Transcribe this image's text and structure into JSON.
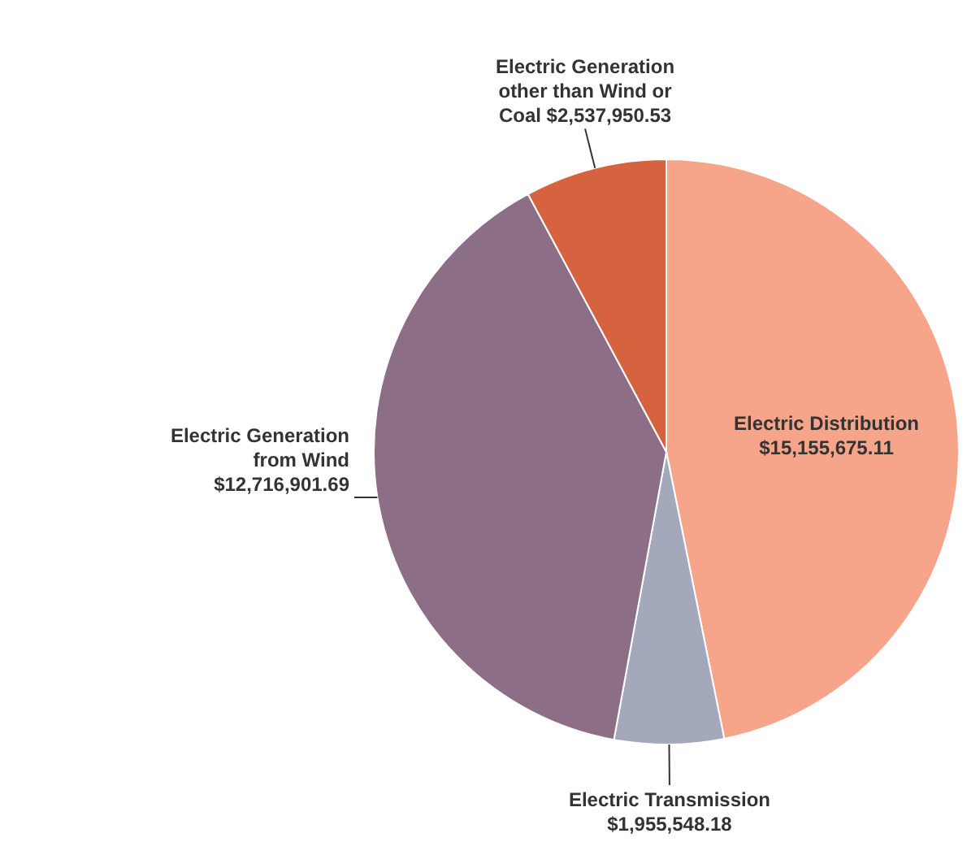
{
  "chart_data": {
    "type": "pie",
    "categories": [
      "Electric Distribution",
      "Electric Transmission",
      "Electric Generation from Wind",
      "Electric Generation other than Wind or Coal"
    ],
    "values": [
      15155675.11,
      1955548.18,
      12716901.69,
      2537950.53
    ],
    "value_labels": [
      "$15,155,675.11",
      "$1,955,548.18",
      "$12,716,901.69",
      "$2,537,950.53"
    ],
    "colors": [
      "#f6a58a",
      "#a3a9ba",
      "#8c6e86",
      "#d6633f"
    ]
  }
}
